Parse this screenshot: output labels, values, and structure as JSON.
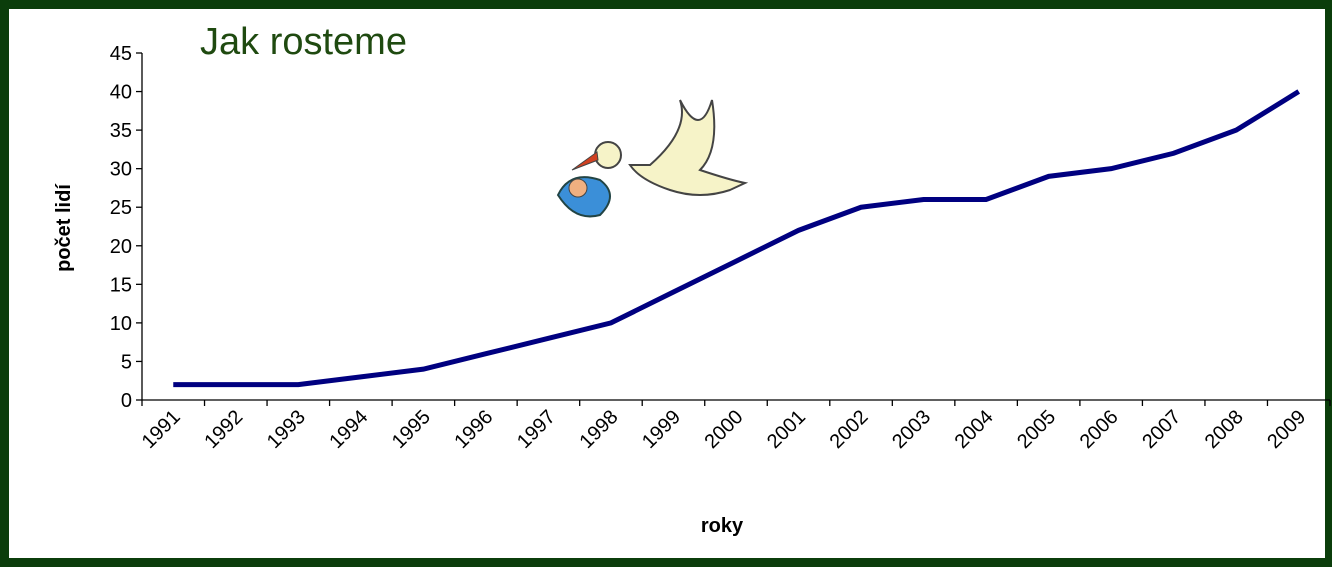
{
  "chart_data": {
    "type": "line",
    "title": "Jak rosteme",
    "x_label": "roky",
    "y_label": "počet lidí",
    "categories": [
      "1991",
      "1992",
      "1993",
      "1994",
      "1995",
      "1996",
      "1997",
      "1998",
      "1999",
      "2000",
      "2001",
      "2002",
      "2003",
      "2004",
      "2005",
      "2006",
      "2007",
      "2008",
      "2009"
    ],
    "values": [
      2,
      2,
      2,
      3,
      4,
      6,
      8,
      10,
      14,
      18,
      22,
      25,
      26,
      26,
      29,
      30,
      32,
      35,
      40
    ],
    "color": "#000080",
    "ylim": [
      0,
      45
    ],
    "yticks": [
      0,
      5,
      10,
      15,
      20,
      25,
      30,
      35,
      40,
      45
    ]
  }
}
